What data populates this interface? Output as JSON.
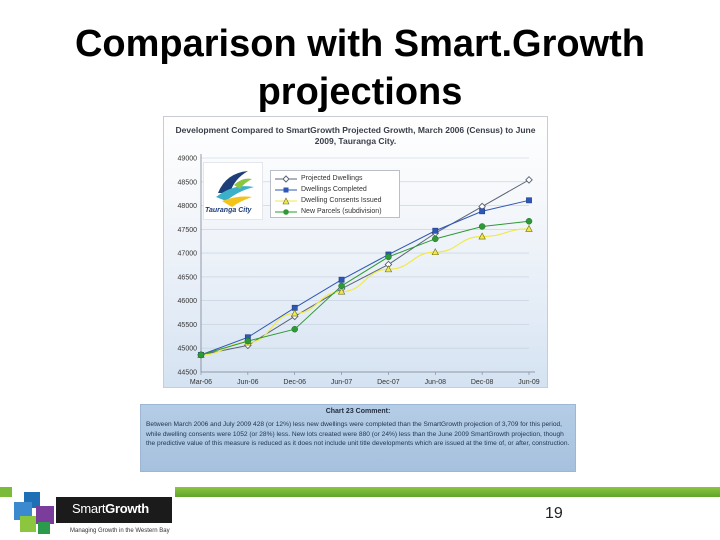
{
  "slide": {
    "title": "Comparison with Smart.Growth projections",
    "page_number": "19"
  },
  "logo": {
    "text": "Tauranga City"
  },
  "footer": {
    "brand_part1": "Smart",
    "brand_part2": "Growth",
    "tagline": "Managing Growth in the Western Bay"
  },
  "comment": {
    "heading": "Chart 23 Comment:",
    "body": "Between March 2006 and July 2009 428 (or 12%) less new dwellings were completed than the SmartGrowth projection of 3,709 for this period, while dwelling consents were 1052 (or 28%) less. New lots created were 880 (or 24%) less than the June 2009 SmartGrowth projection, though the predictive value of this measure is reduced as it does not include unit title developments which are issued at the time of, or after, construction."
  },
  "colors": {
    "projected": "#5b6478",
    "completed": "#2f57b5",
    "consents": "#f0e94a",
    "parcels": "#2d9a35"
  },
  "chart_data": {
    "type": "line",
    "title": "Development Compared to SmartGrowth Projected Growth, March 2006 (Census) to June 2009, Tauranga City.",
    "categories": [
      "Mar-06",
      "Jun-06",
      "Dec-06",
      "Jun-07",
      "Dec-07",
      "Jun-08",
      "Dec-08",
      "Jun-09"
    ],
    "y_ticks": [
      44500,
      45000,
      45500,
      46000,
      46500,
      47000,
      47500,
      48000,
      48500,
      49000
    ],
    "ylim": [
      44500,
      49000
    ],
    "series": [
      {
        "name": "Projected Dwellings",
        "marker": "diamond",
        "values": [
          44860,
          45060,
          45670,
          46250,
          46760,
          47420,
          47980,
          48540
        ]
      },
      {
        "name": "Dwellings Completed",
        "marker": "square",
        "values": [
          44860,
          45230,
          45850,
          46440,
          46970,
          47470,
          47880,
          48110
        ]
      },
      {
        "name": "Dwelling Consents Issued",
        "marker": "triangle",
        "values": [
          44860,
          45120,
          45730,
          46190,
          46660,
          47020,
          47350,
          47510
        ]
      },
      {
        "name": "New Parcels (subdivision)",
        "marker": "circle",
        "values": [
          44860,
          45150,
          45400,
          46310,
          46920,
          47300,
          47560,
          47670
        ]
      }
    ]
  }
}
